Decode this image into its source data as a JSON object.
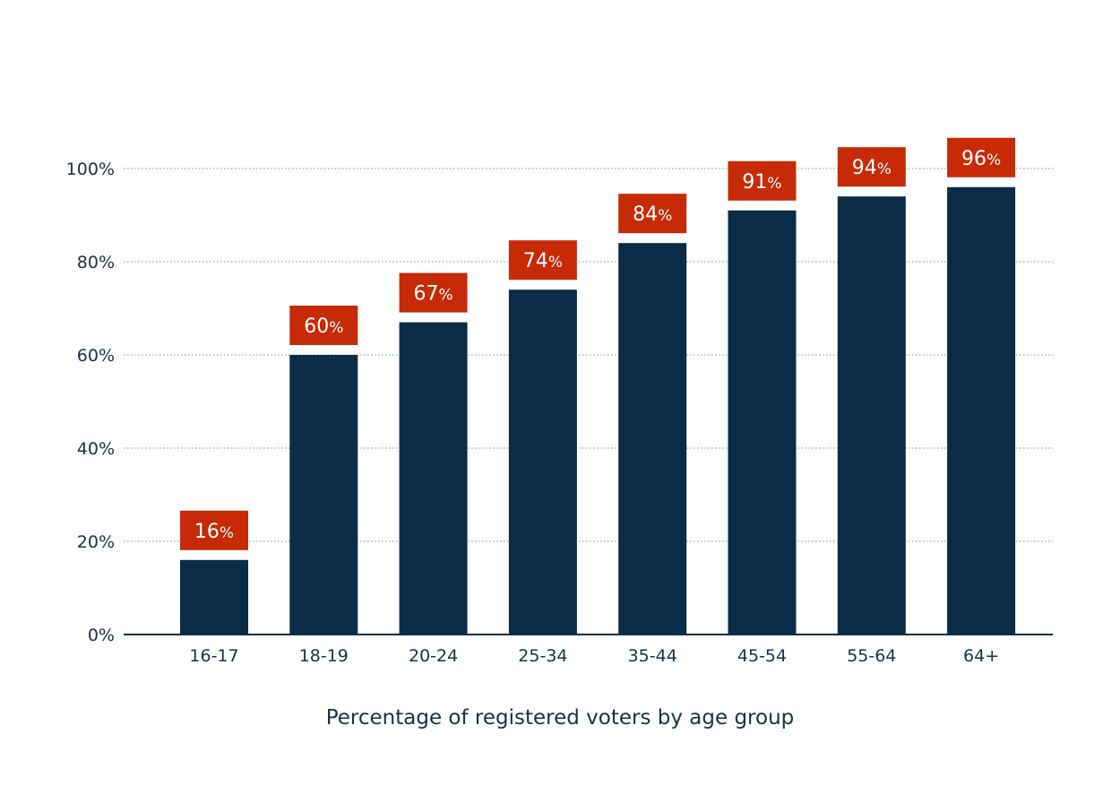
{
  "chart_data": {
    "type": "bar",
    "categories": [
      "16-17",
      "18-19",
      "20-24",
      "25-34",
      "35-44",
      "45-54",
      "55-64",
      "64+"
    ],
    "values": [
      16,
      60,
      67,
      74,
      84,
      91,
      94,
      96
    ],
    "title": "",
    "xlabel": "Percentage of registered voters by age group",
    "ylabel": "",
    "ylim": [
      0,
      100
    ],
    "yticks": [
      "0%",
      "20%",
      "40%",
      "60%",
      "80%",
      "100%"
    ],
    "grid": true,
    "value_suffix": "%",
    "colors": {
      "bar": "#0b2c47",
      "label_bg": "#c62a07",
      "label_text": "#ffffff",
      "axis": "#0b2c47",
      "grid": "#8a8a8a",
      "text": "#1f2f44"
    }
  }
}
